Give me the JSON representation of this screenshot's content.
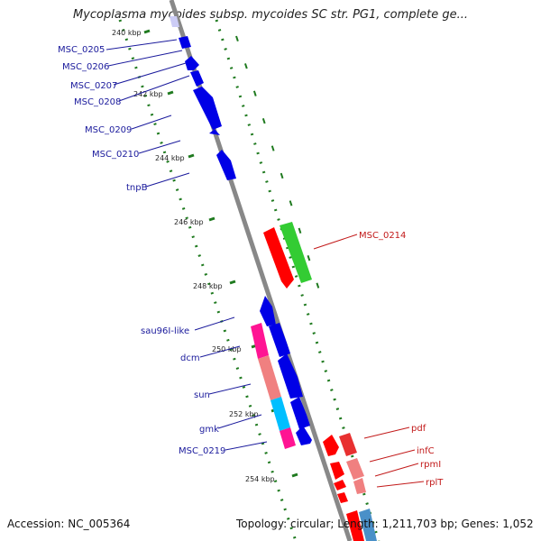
{
  "title": "Mycoplasma mycoides subsp. mycoides SC str. PG1, complete ge...",
  "footer": {
    "accession": "Accession: NC_005364",
    "stats": "Topology: circular; Length: 1,211,703 bp; Genes: 1,052"
  },
  "tick_labels": [
    "240 kbp",
    "242 kbp",
    "244 kbp",
    "246 kbp",
    "248 kbp",
    "250 kbp",
    "252 kbp",
    "254 kbp"
  ],
  "gene_labels": {
    "left": [
      "MSC_0205",
      "MSC_0206",
      "MSC_0207",
      "MSC_0208",
      "MSC_0209",
      "MSC_0210",
      "tnpB",
      "sau96I-like",
      "dcm",
      "sun",
      "gmk",
      "MSC_0219"
    ],
    "right": [
      "MSC_0214",
      "pdf",
      "infC",
      "rpmI",
      "rplT"
    ]
  },
  "colors": {
    "forward_cds": "#0000e6",
    "reverse_cds": "#ff0000",
    "backbone": "#888888",
    "gc_ticks": "#1f7a1f",
    "left_label": "#1a1a9c",
    "right_label": "#c21a1a",
    "magenta_feature": "#ff1493",
    "salmon_feature": "#f08080",
    "cyan_feature": "#00bfff",
    "green_feature": "#33cc33"
  }
}
